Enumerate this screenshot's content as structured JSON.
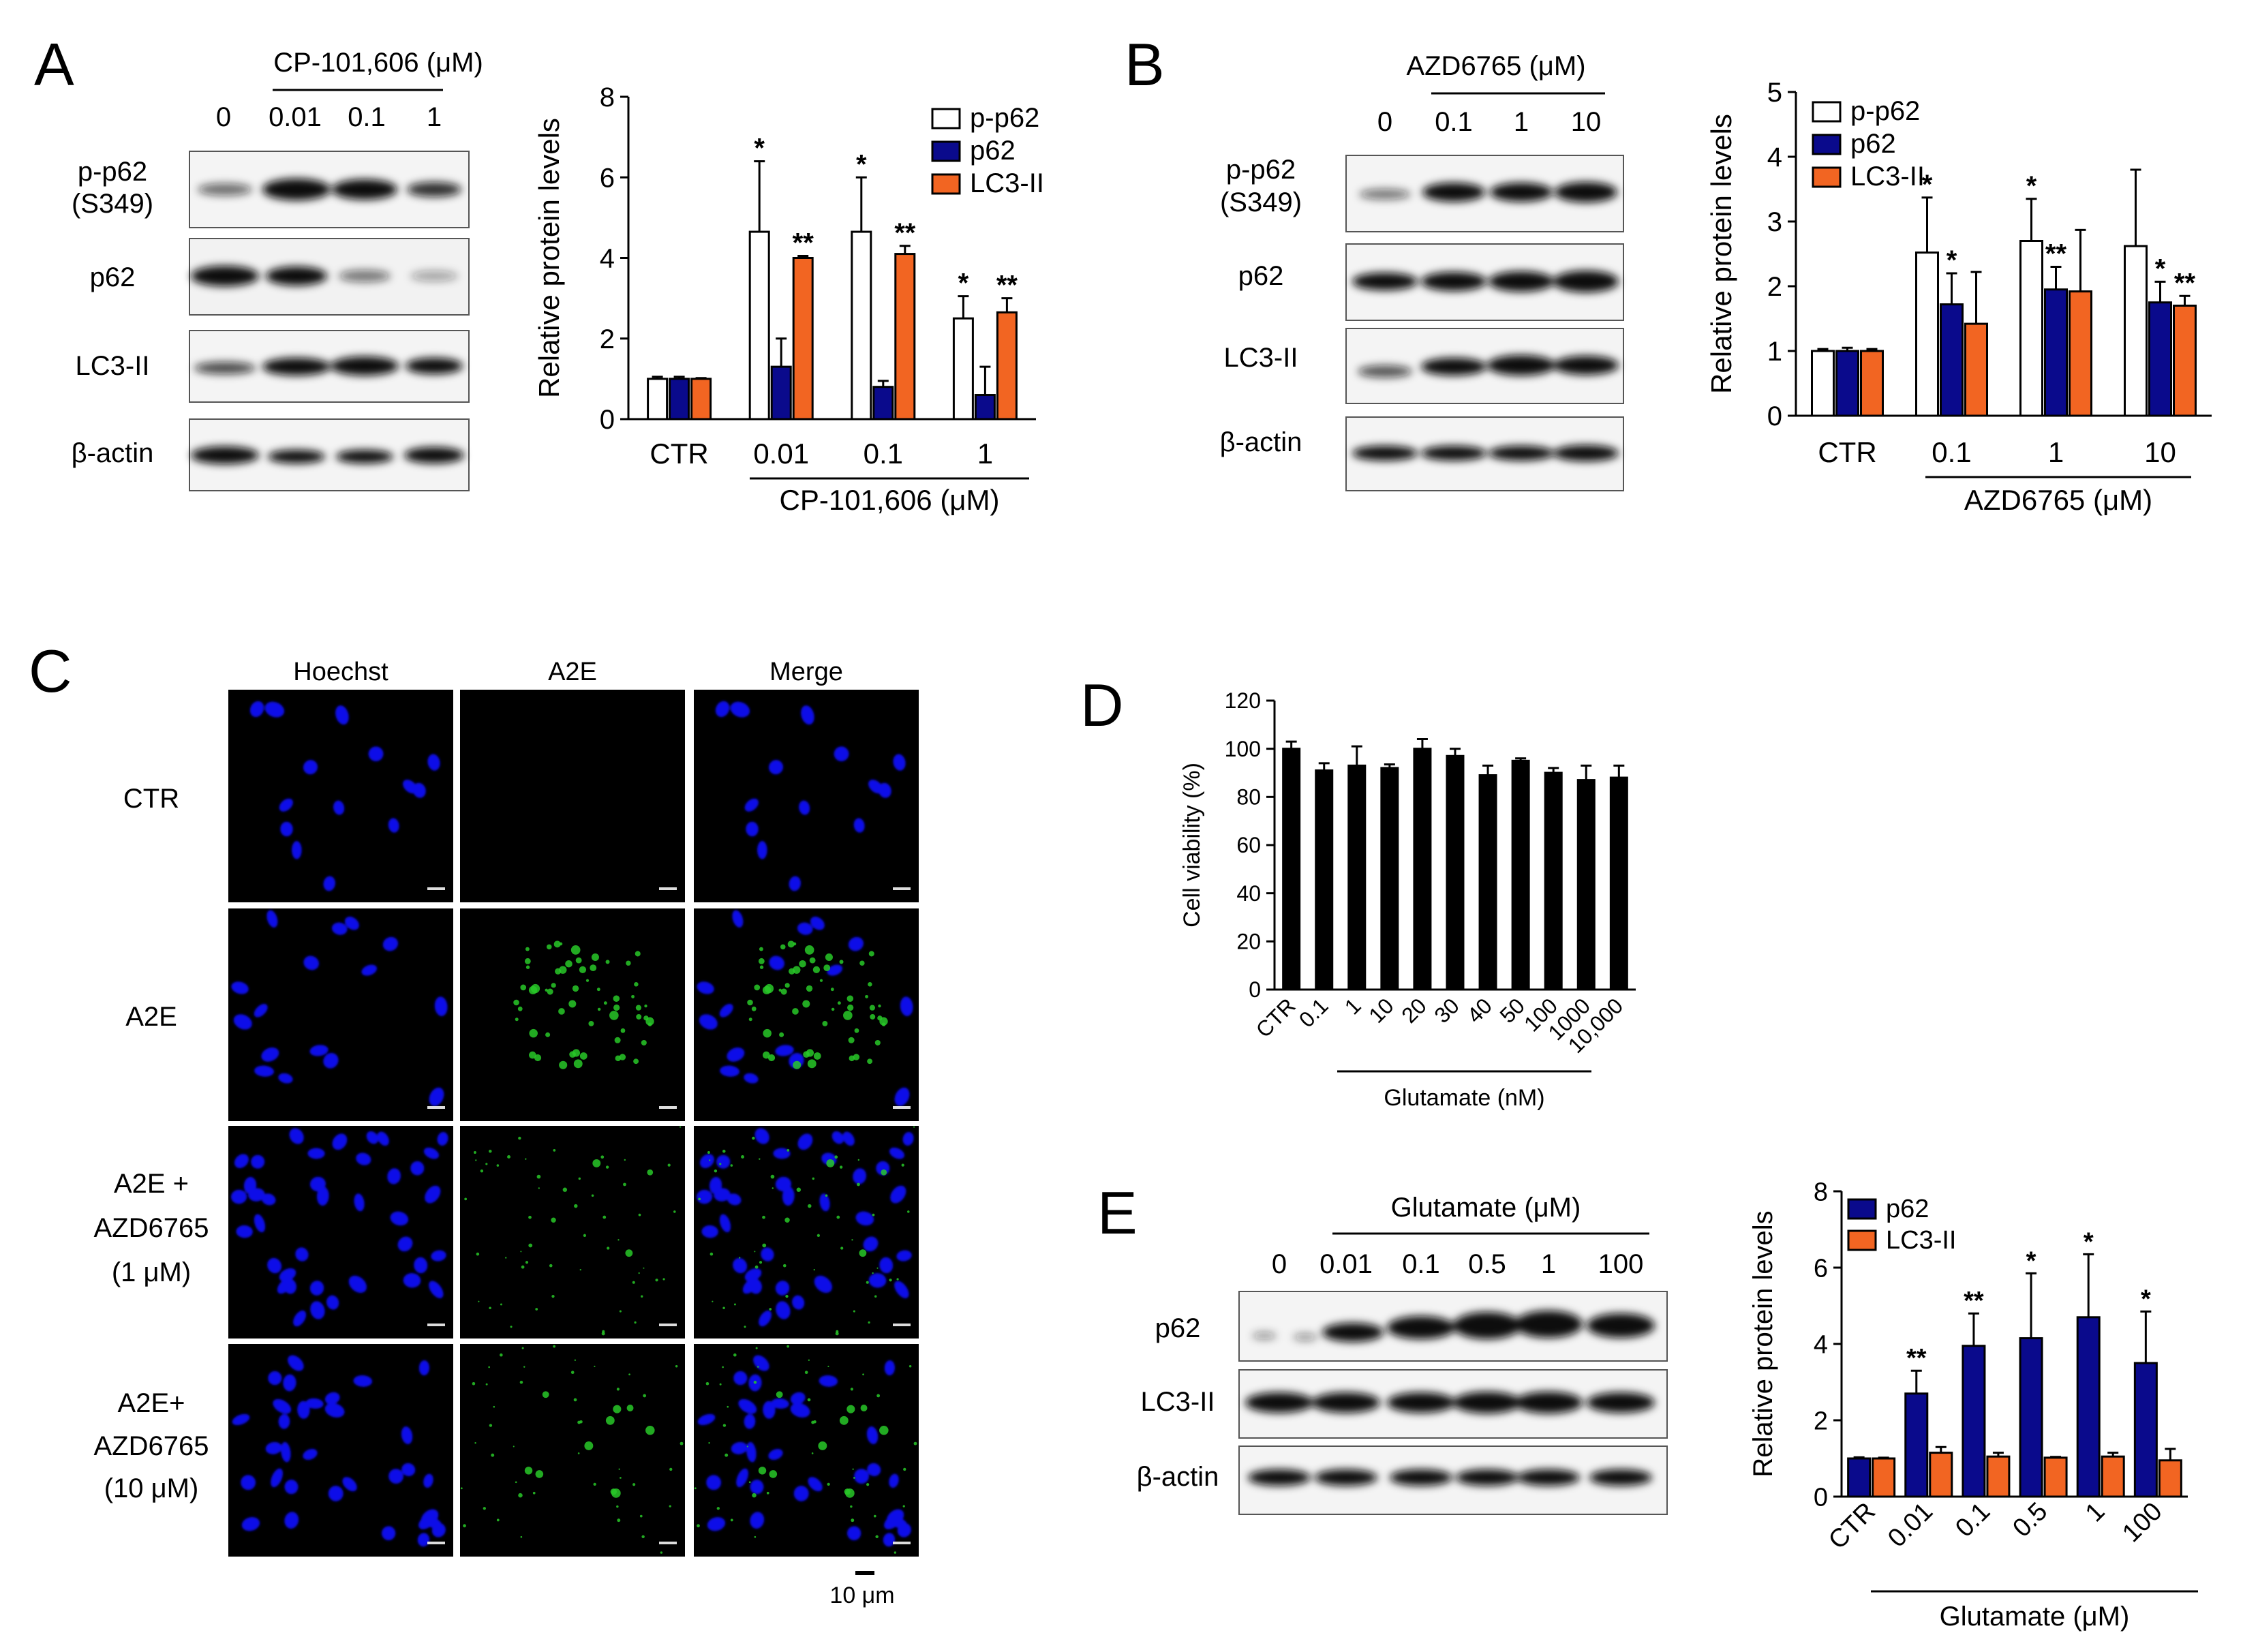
{
  "panels": {
    "A": {
      "letter": "A",
      "blot": {
        "treatment": "CP-101,606 (μM)",
        "lanes": [
          "0",
          "0.01",
          "0.1",
          "1"
        ],
        "rows": [
          "p-p62",
          "(S349)",
          "p62",
          "LC3-II",
          "β-actin"
        ]
      }
    },
    "B": {
      "letter": "B",
      "blot": {
        "treatment": "AZD6765 (μM)",
        "lanes": [
          "0",
          "0.1",
          "1",
          "10"
        ],
        "rows": [
          "p-p62",
          "(S349)",
          "p62",
          "LC3-II",
          "β-actin"
        ]
      }
    },
    "C": {
      "letter": "C",
      "columns": [
        "Hoechst",
        "A2E",
        "Merge"
      ],
      "rows": [
        "CTR",
        "A2E",
        "A2E +",
        "AZD6765",
        "(1 μM)",
        "A2E+",
        "AZD6765",
        "(10 μM)"
      ],
      "scale_bar": "10 μm"
    },
    "D": {
      "letter": "D"
    },
    "E": {
      "letter": "E",
      "blot": {
        "treatment": "Glutamate (μM)",
        "lanes": [
          "0",
          "0.01",
          "0.1",
          "0.5",
          "1",
          "100"
        ],
        "rows": [
          "p62",
          "LC3-II",
          "β-actin"
        ]
      }
    }
  },
  "chart_data": [
    {
      "id": "A",
      "type": "bar",
      "ylabel": "Relative protein levels",
      "xgroup_label": "CP-101,606  (μM)",
      "categories": [
        "CTR",
        "0.01",
        "0.1",
        "1"
      ],
      "ylim": [
        0,
        8
      ],
      "yticks": [
        "0",
        "2",
        "4",
        "6",
        "8"
      ],
      "legend_position": "top-right",
      "series": [
        {
          "name": "p-p62",
          "color": "#ffffff",
          "values": [
            1.0,
            4.65,
            4.65,
            2.5
          ],
          "errors": [
            0.05,
            1.75,
            1.35,
            0.55
          ],
          "stars": [
            "",
            "*",
            "*",
            "*"
          ]
        },
        {
          "name": "p62",
          "color": "#0a0a8c",
          "values": [
            1.0,
            1.3,
            0.8,
            0.6
          ],
          "errors": [
            0.05,
            0.7,
            0.15,
            0.7
          ],
          "stars": [
            "",
            "",
            "",
            ""
          ]
        },
        {
          "name": "LC3-II",
          "color": "#f26522",
          "values": [
            1.0,
            4.0,
            4.1,
            2.65
          ],
          "errors": [
            0.02,
            0.05,
            0.2,
            0.35
          ],
          "stars": [
            "",
            "**",
            "**",
            "**"
          ]
        }
      ]
    },
    {
      "id": "B",
      "type": "bar",
      "ylabel": "Relative protein levels",
      "xgroup_label": "AZD6765 (μM)",
      "categories": [
        "CTR",
        "0.1",
        "1",
        "10"
      ],
      "ylim": [
        0,
        5
      ],
      "yticks": [
        "0",
        "1",
        "2",
        "3",
        "4",
        "5"
      ],
      "legend_position": "top-left",
      "series": [
        {
          "name": "p-p62",
          "color": "#ffffff",
          "values": [
            1.0,
            2.52,
            2.7,
            2.62
          ],
          "errors": [
            0.03,
            0.85,
            0.65,
            1.18
          ],
          "stars": [
            "",
            "*",
            "*",
            ""
          ]
        },
        {
          "name": "p62",
          "color": "#0a0a8c",
          "values": [
            1.0,
            1.72,
            1.95,
            1.75
          ],
          "errors": [
            0.05,
            0.48,
            0.35,
            0.32
          ],
          "stars": [
            "",
            "*",
            "**",
            "*"
          ]
        },
        {
          "name": "LC3-II",
          "color": "#f26522",
          "values": [
            1.0,
            1.42,
            1.92,
            1.7
          ],
          "errors": [
            0.03,
            0.8,
            0.95,
            0.15
          ],
          "stars": [
            "",
            "",
            "",
            "**"
          ]
        }
      ]
    },
    {
      "id": "D",
      "type": "bar",
      "ylabel": "Cell viability (%)",
      "xgroup_label": "Glutamate (nM)",
      "categories": [
        "CTR",
        "0.1",
        "1",
        "10",
        "20",
        "30",
        "40",
        "50",
        "100",
        "1000",
        "10,000"
      ],
      "ylim": [
        0,
        120
      ],
      "yticks": [
        "0",
        "20",
        "40",
        "60",
        "80",
        "100",
        "120"
      ],
      "series": [
        {
          "name": "",
          "color": "#000000",
          "values": [
            100,
            91,
            93,
            92,
            100,
            97,
            89,
            95,
            90,
            87,
            88
          ],
          "errors": [
            3,
            3,
            8,
            1.5,
            4,
            3,
            4,
            1,
            2,
            6,
            5
          ],
          "stars": [
            "",
            "",
            "",
            "",
            "",
            "",
            "",
            "",
            "",
            "",
            ""
          ]
        }
      ]
    },
    {
      "id": "E",
      "type": "bar",
      "ylabel": "Relative protein levels",
      "xgroup_label": "Glutamate (μM)",
      "categories": [
        "CTR",
        "0.01",
        "0.1",
        "0.5",
        "1",
        "100"
      ],
      "ylim": [
        0,
        8
      ],
      "yticks": [
        "0",
        "2",
        "4",
        "6",
        "8"
      ],
      "legend_position": "top-left",
      "series": [
        {
          "name": "p62",
          "color": "#0a0a8c",
          "values": [
            1.0,
            2.7,
            3.95,
            4.15,
            4.7,
            3.5
          ],
          "errors": [
            0.03,
            0.6,
            0.85,
            1.7,
            1.65,
            1.35
          ],
          "stars": [
            "",
            "**",
            "**",
            "*",
            "*",
            "*"
          ]
        },
        {
          "name": "LC3-II",
          "color": "#f26522",
          "values": [
            1.0,
            1.15,
            1.05,
            1.02,
            1.05,
            0.95
          ],
          "errors": [
            0.02,
            0.15,
            0.1,
            0.02,
            0.1,
            0.3
          ],
          "stars": [
            "",
            "",
            "",
            "",
            "",
            ""
          ]
        }
      ]
    }
  ]
}
